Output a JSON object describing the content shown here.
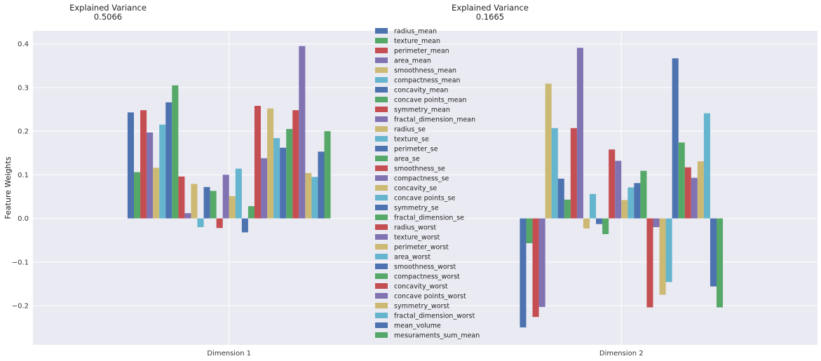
{
  "chart_data": {
    "type": "bar",
    "ylabel": "Feature Weights",
    "xlabel": "",
    "ylim": [
      -0.29,
      0.43
    ],
    "yticks": [
      -0.2,
      -0.1,
      0.0,
      0.1,
      0.2,
      0.3,
      0.4
    ],
    "ytick_labels": [
      "−0.2",
      "−0.1",
      "0.0",
      "0.1",
      "0.2",
      "0.3",
      "0.4"
    ],
    "grid": true,
    "legend_position": "center-top",
    "categories": [
      "Dimension 1",
      "Dimension 2"
    ],
    "explained_variance": [
      {
        "title": "Explained Variance",
        "value": "0.5066"
      },
      {
        "title": "Explained Variance",
        "value": "0.1665"
      }
    ],
    "colors": [
      "#4C72B0",
      "#55A868",
      "#C44E52",
      "#8172B2",
      "#CCB974",
      "#64B5CD"
    ],
    "series": [
      {
        "name": "radius_mean",
        "values": [
          0.243,
          -0.25
        ]
      },
      {
        "name": "texture_mean",
        "values": [
          0.106,
          -0.057
        ]
      },
      {
        "name": "perimeter_mean",
        "values": [
          0.248,
          -0.226
        ]
      },
      {
        "name": "area_mean",
        "values": [
          0.197,
          -0.203
        ]
      },
      {
        "name": "smoothness_mean",
        "values": [
          0.116,
          0.309
        ]
      },
      {
        "name": "compactness_mean",
        "values": [
          0.215,
          0.207
        ]
      },
      {
        "name": "concavity_mean",
        "values": [
          0.266,
          0.091
        ]
      },
      {
        "name": "concave points_mean",
        "values": [
          0.305,
          0.043
        ]
      },
      {
        "name": "symmetry_mean",
        "values": [
          0.096,
          0.207
        ]
      },
      {
        "name": "fractal_dimension_mean",
        "values": [
          0.012,
          0.391
        ]
      },
      {
        "name": "radius_se",
        "values": [
          0.079,
          -0.023
        ]
      },
      {
        "name": "texture_se",
        "values": [
          -0.02,
          0.056
        ]
      },
      {
        "name": "perimeter_se",
        "values": [
          0.072,
          -0.013
        ]
      },
      {
        "name": "area_se",
        "values": [
          0.063,
          -0.036
        ]
      },
      {
        "name": "smoothness_se",
        "values": [
          -0.022,
          0.158
        ]
      },
      {
        "name": "compactness_se",
        "values": [
          0.1,
          0.132
        ]
      },
      {
        "name": "concavity_se",
        "values": [
          0.051,
          0.042
        ]
      },
      {
        "name": "concave points_se",
        "values": [
          0.114,
          0.071
        ]
      },
      {
        "name": "symmetry_se",
        "values": [
          -0.032,
          0.081
        ]
      },
      {
        "name": "fractal_dimension_se",
        "values": [
          0.028,
          0.109
        ]
      },
      {
        "name": "radius_worst",
        "values": [
          0.258,
          -0.204
        ]
      },
      {
        "name": "texture_worst",
        "values": [
          0.138,
          -0.02
        ]
      },
      {
        "name": "perimeter_worst",
        "values": [
          0.252,
          -0.175
        ]
      },
      {
        "name": "area_worst",
        "values": [
          0.184,
          -0.146
        ]
      },
      {
        "name": "smoothness_worst",
        "values": [
          0.162,
          0.367
        ]
      },
      {
        "name": "compactness_worst",
        "values": [
          0.205,
          0.174
        ]
      },
      {
        "name": "concavity_worst",
        "values": [
          0.248,
          0.117
        ]
      },
      {
        "name": "concave points_worst",
        "values": [
          0.395,
          0.093
        ]
      },
      {
        "name": "symmetry_worst",
        "values": [
          0.104,
          0.131
        ]
      },
      {
        "name": "fractal_dimension_worst",
        "values": [
          0.095,
          0.241
        ]
      },
      {
        "name": "mean_volume",
        "values": [
          0.153,
          -0.156
        ]
      },
      {
        "name": "mesuraments_sum_mean",
        "values": [
          0.2,
          -0.204
        ]
      }
    ]
  }
}
